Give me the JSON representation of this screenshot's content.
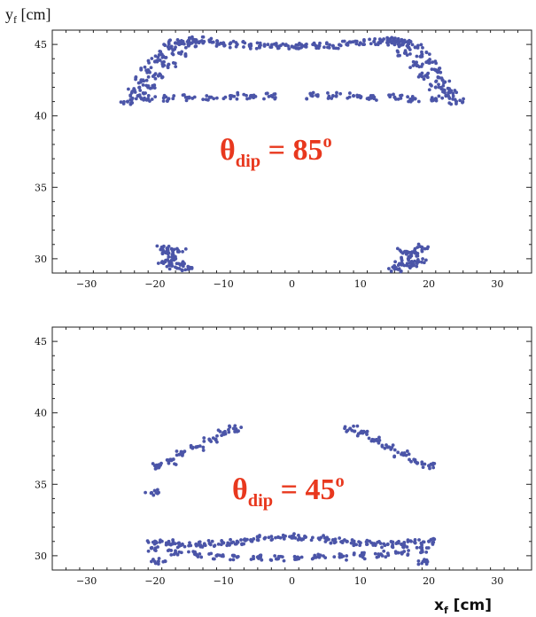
{
  "chart_data": [
    {
      "type": "scatter",
      "title": "",
      "ylabel_base": "y",
      "ylabel_sub": "f",
      "ylabel_unit": " [cm]",
      "xlim": [
        -35,
        35
      ],
      "ylim": [
        29,
        46
      ],
      "xticks": [
        -30,
        -20,
        -10,
        0,
        10,
        20,
        30
      ],
      "xtick_labels": [
        "−30",
        "−20",
        "−10",
        "0",
        "10",
        "20",
        "30"
      ],
      "yticks": [
        30,
        35,
        40,
        45
      ],
      "ytick_labels": [
        "30",
        "35",
        "40",
        "45"
      ],
      "annotation": {
        "symbol": "θ",
        "sub": "dip",
        "text": " = 85",
        "sup": "o"
      },
      "marker_color": "#4b55a8",
      "series": [
        {
          "values": [
            [
              -24.0,
              41.0
            ],
            [
              -23.0,
              41.8
            ],
            [
              -22.0,
              42.5
            ],
            [
              -21.0,
              43.2
            ],
            [
              -20.0,
              43.8
            ],
            [
              -19.0,
              44.3
            ],
            [
              -18.0,
              44.8
            ],
            [
              -17.0,
              45.1
            ],
            [
              -16.5,
              45.2
            ],
            [
              -22.5,
              41.4
            ],
            [
              -21.0,
              42.0
            ],
            [
              -19.5,
              42.8
            ],
            [
              -18.0,
              43.6
            ],
            [
              -16.5,
              44.4
            ],
            [
              -15.0,
              45.0
            ],
            [
              -14.0,
              45.3
            ]
          ]
        },
        {
          "values": [
            [
              -14.0,
              45.3
            ],
            [
              -12.0,
              45.2
            ],
            [
              -10.0,
              45.1
            ],
            [
              -8.0,
              45.0
            ],
            [
              -6.0,
              44.9
            ],
            [
              -4.0,
              44.9
            ],
            [
              -2.0,
              44.85
            ],
            [
              0.0,
              44.85
            ],
            [
              2.0,
              44.85
            ],
            [
              4.0,
              44.9
            ],
            [
              6.0,
              44.9
            ],
            [
              8.0,
              45.0
            ],
            [
              10.0,
              45.1
            ],
            [
              12.0,
              45.2
            ],
            [
              14.0,
              45.3
            ]
          ]
        },
        {
          "values": [
            [
              14.0,
              45.3
            ],
            [
              15.0,
              45.0
            ],
            [
              16.5,
              44.4
            ],
            [
              18.0,
              43.6
            ],
            [
              19.5,
              42.8
            ],
            [
              21.0,
              42.0
            ],
            [
              22.5,
              41.4
            ],
            [
              16.5,
              45.2
            ],
            [
              17.0,
              45.1
            ],
            [
              18.0,
              44.8
            ],
            [
              19.0,
              44.3
            ],
            [
              20.0,
              43.8
            ],
            [
              21.0,
              43.2
            ],
            [
              22.0,
              42.5
            ],
            [
              23.0,
              41.8
            ],
            [
              24.0,
              41.0
            ]
          ]
        },
        {
          "values": [
            [
              -21.0,
              41.2
            ],
            [
              -18.0,
              41.2
            ],
            [
              -15.0,
              41.3
            ],
            [
              -12.0,
              41.3
            ],
            [
              -9.0,
              41.4
            ],
            [
              -6.0,
              41.4
            ],
            [
              -3.0,
              41.4
            ],
            [
              3.0,
              41.4
            ],
            [
              6.0,
              41.4
            ],
            [
              9.0,
              41.4
            ],
            [
              12.0,
              41.3
            ],
            [
              15.0,
              41.3
            ],
            [
              18.0,
              41.2
            ],
            [
              21.0,
              41.2
            ]
          ]
        },
        {
          "values": [
            [
              -19.0,
              30.8
            ],
            [
              -18.0,
              30.4
            ],
            [
              -17.0,
              30.0
            ],
            [
              -16.0,
              29.6
            ],
            [
              -15.0,
              29.3
            ],
            [
              -18.5,
              29.8
            ],
            [
              -17.5,
              29.5
            ],
            [
              -16.5,
              30.5
            ]
          ]
        },
        {
          "values": [
            [
              15.0,
              29.3
            ],
            [
              16.0,
              29.6
            ],
            [
              17.0,
              30.0
            ],
            [
              18.0,
              30.4
            ],
            [
              19.0,
              30.8
            ],
            [
              18.5,
              29.8
            ],
            [
              17.5,
              29.5
            ],
            [
              16.5,
              30.5
            ]
          ]
        }
      ]
    },
    {
      "type": "scatter",
      "title": "",
      "xlabel_base": "x",
      "xlabel_sub": "f",
      "xlabel_unit": " [cm]",
      "xlim": [
        -35,
        35
      ],
      "ylim": [
        29,
        46
      ],
      "xticks": [
        -30,
        -20,
        -10,
        0,
        10,
        20,
        30
      ],
      "xtick_labels": [
        "−30",
        "−20",
        "−10",
        "0",
        "10",
        "20",
        "30"
      ],
      "yticks": [
        30,
        35,
        40,
        45
      ],
      "ytick_labels": [
        "30",
        "35",
        "40",
        "45"
      ],
      "annotation": {
        "symbol": "θ",
        "sub": "dip",
        "text": " = 45",
        "sup": "o"
      },
      "marker_color": "#4b55a8",
      "series": [
        {
          "values": [
            [
              -20.0,
              36.3
            ],
            [
              -18.0,
              36.6
            ],
            [
              -16.0,
              37.1
            ],
            [
              -14.0,
              37.6
            ],
            [
              -12.0,
              38.1
            ],
            [
              -10.0,
              38.6
            ],
            [
              -8.5,
              38.9
            ],
            [
              -20.5,
              34.4
            ]
          ]
        },
        {
          "values": [
            [
              8.5,
              38.9
            ],
            [
              10.0,
              38.6
            ],
            [
              12.0,
              38.1
            ],
            [
              14.0,
              37.6
            ],
            [
              16.0,
              37.1
            ],
            [
              18.0,
              36.6
            ],
            [
              20.0,
              36.3
            ]
          ]
        },
        {
          "values": [
            [
              -20.0,
              31.0
            ],
            [
              -18.0,
              30.9
            ],
            [
              -16.0,
              30.8
            ],
            [
              -14.0,
              30.8
            ],
            [
              -12.0,
              30.85
            ],
            [
              -10.0,
              30.9
            ],
            [
              -8.0,
              31.0
            ],
            [
              -6.0,
              31.1
            ],
            [
              -4.0,
              31.2
            ],
            [
              -2.0,
              31.3
            ],
            [
              0.0,
              31.35
            ],
            [
              2.0,
              31.3
            ],
            [
              4.0,
              31.2
            ],
            [
              6.0,
              31.1
            ],
            [
              8.0,
              31.0
            ],
            [
              10.0,
              30.9
            ],
            [
              12.0,
              30.85
            ],
            [
              14.0,
              30.8
            ],
            [
              16.0,
              30.8
            ],
            [
              18.0,
              30.9
            ],
            [
              20.0,
              31.0
            ]
          ]
        },
        {
          "values": [
            [
              -20.0,
              30.4
            ],
            [
              -17.0,
              30.2
            ],
            [
              -14.0,
              30.1
            ],
            [
              -11.0,
              30.0
            ],
            [
              -8.0,
              29.9
            ],
            [
              -5.0,
              29.9
            ],
            [
              -2.0,
              29.8
            ],
            [
              1.0,
              29.8
            ],
            [
              4.0,
              29.9
            ],
            [
              7.0,
              29.9
            ],
            [
              10.0,
              30.0
            ],
            [
              13.0,
              30.1
            ],
            [
              16.0,
              30.2
            ],
            [
              19.0,
              30.4
            ],
            [
              -19.5,
              29.6
            ],
            [
              19.5,
              29.6
            ]
          ]
        }
      ]
    }
  ]
}
